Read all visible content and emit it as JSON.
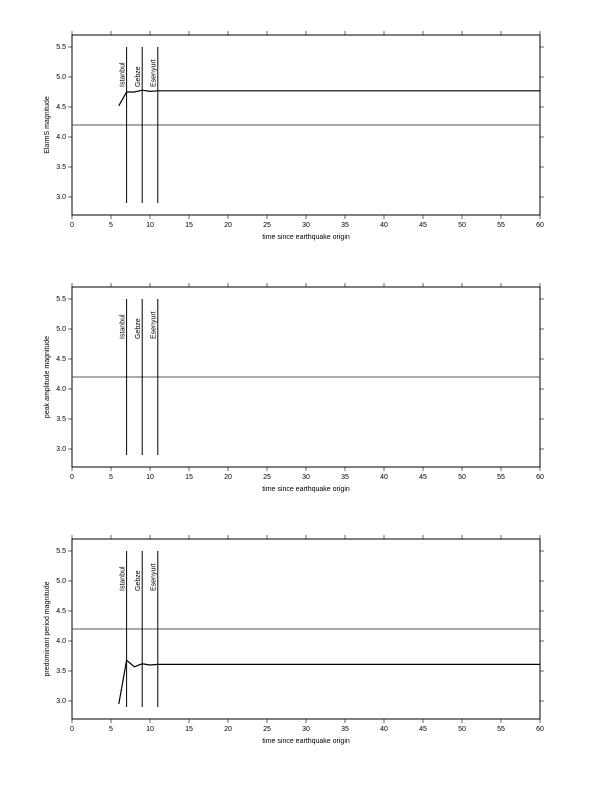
{
  "chart_data": [
    {
      "type": "line",
      "xlabel": "time since earthquake origin",
      "ylabel": "ElarmS magnitude",
      "xlim": [
        0,
        60
      ],
      "ylim": [
        2.7,
        5.7
      ],
      "xticks": [
        0,
        5,
        10,
        15,
        20,
        25,
        30,
        35,
        40,
        45,
        50,
        55,
        60
      ],
      "yticks": [
        {
          "value": 3,
          "label": "3.0"
        },
        3.5,
        {
          "value": 4,
          "label": "4.0"
        },
        4.5,
        {
          "value": 5,
          "label": "5.0"
        },
        5.5
      ],
      "threshold": 4.2,
      "events": [
        {
          "label": "Istanbul",
          "x": 7
        },
        {
          "label": "Gebze",
          "x": 9
        },
        {
          "label": "Esenyurt",
          "x": 11
        }
      ],
      "event_ylim": [
        2.9,
        5.5
      ],
      "series": [
        {
          "color": "#000000",
          "x": [
            6,
            7,
            8,
            9,
            10,
            11,
            60
          ],
          "values": [
            4.52,
            4.75,
            4.75,
            4.78,
            4.76,
            4.77,
            4.77
          ]
        }
      ]
    },
    {
      "type": "line",
      "xlabel": "time since earthquake origin",
      "ylabel": "peak amplitude magnitude",
      "xlim": [
        0,
        60
      ],
      "ylim": [
        2.7,
        5.7
      ],
      "xticks": [
        0,
        5,
        10,
        15,
        20,
        25,
        30,
        35,
        40,
        45,
        50,
        55,
        60
      ],
      "yticks": [
        {
          "value": 3,
          "label": "3.0"
        },
        3.5,
        {
          "value": 4,
          "label": "4.0"
        },
        4.5,
        {
          "value": 5,
          "label": "5.0"
        },
        5.5
      ],
      "threshold": 4.2,
      "events": [
        {
          "label": "Istanbul",
          "x": 7
        },
        {
          "label": "Gebze",
          "x": 9
        },
        {
          "label": "Esenyurt",
          "x": 11
        }
      ],
      "event_ylim": [
        2.9,
        5.5
      ],
      "series": []
    },
    {
      "type": "line",
      "xlabel": "time since earthquake origin",
      "ylabel": "predominant period magnitude",
      "xlim": [
        0,
        60
      ],
      "ylim": [
        2.7,
        5.7
      ],
      "xticks": [
        0,
        5,
        10,
        15,
        20,
        25,
        30,
        35,
        40,
        45,
        50,
        55,
        60
      ],
      "yticks": [
        {
          "value": 3,
          "label": "3.0"
        },
        3.5,
        {
          "value": 4,
          "label": "4.0"
        },
        4.5,
        {
          "value": 5,
          "label": "5.0"
        },
        5.5
      ],
      "threshold": 4.2,
      "events": [
        {
          "label": "Istanbul",
          "x": 7
        },
        {
          "label": "Gebze",
          "x": 9
        },
        {
          "label": "Esenyurt",
          "x": 11
        }
      ],
      "event_ylim": [
        2.9,
        5.5
      ],
      "series": [
        {
          "color": "#000000",
          "x": [
            6,
            7,
            8,
            9,
            10,
            11,
            60
          ],
          "values": [
            2.95,
            3.68,
            3.57,
            3.62,
            3.6,
            3.61,
            3.61
          ]
        }
      ]
    }
  ]
}
